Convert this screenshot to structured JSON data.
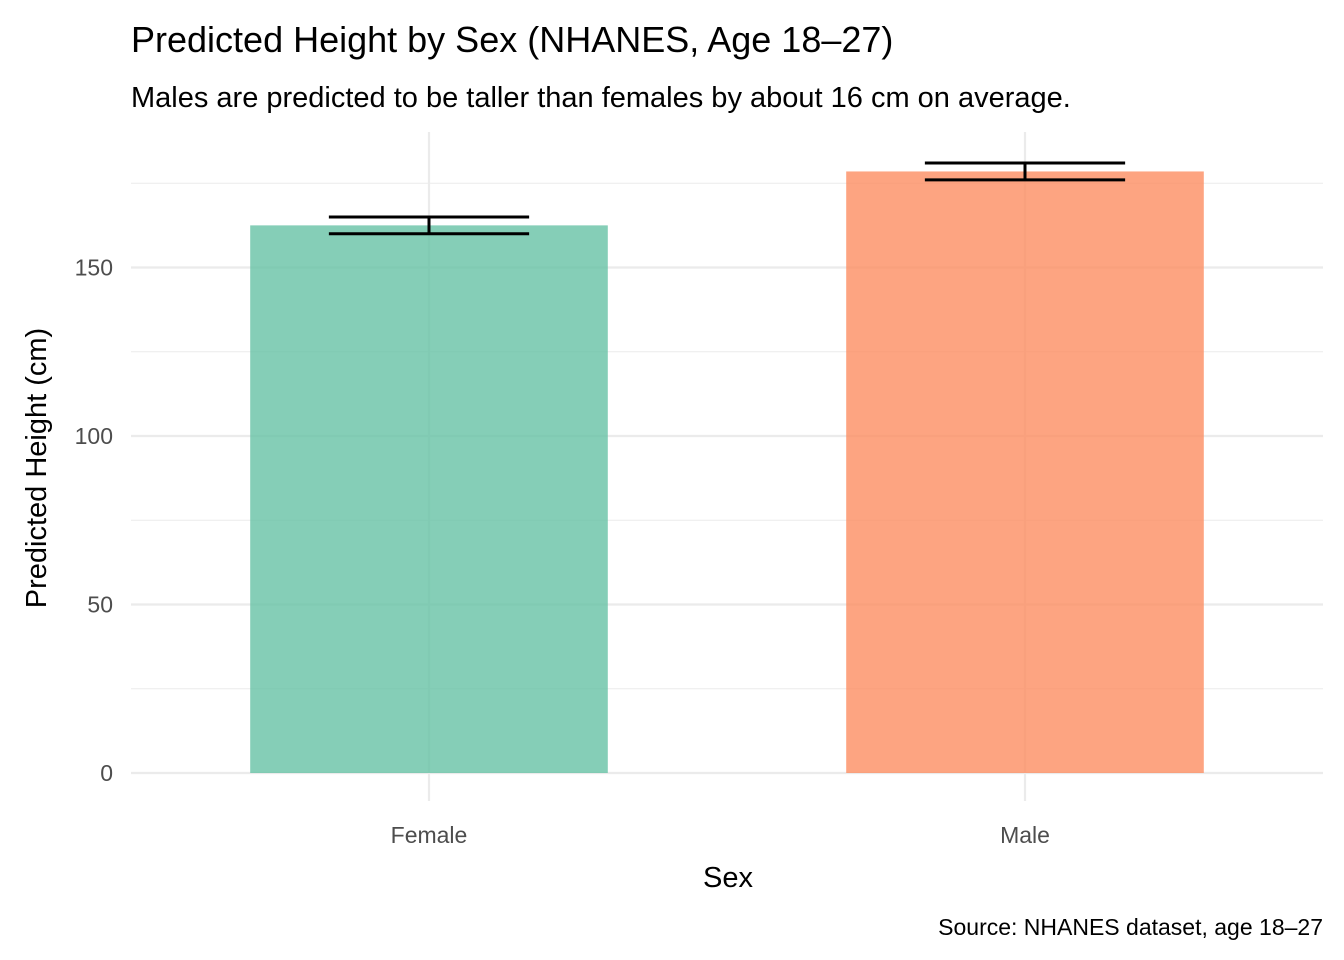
{
  "chart_data": {
    "type": "bar",
    "title": "Predicted Height by Sex (NHANES, Age 18–27)",
    "subtitle": "Males are predicted to be taller than females by about 16 cm on average.",
    "xlabel": "Sex",
    "ylabel": "Predicted Height (cm)",
    "caption": "Source: NHANES dataset, age 18–27",
    "categories": [
      "Female",
      "Male"
    ],
    "values": [
      162.5,
      178.5
    ],
    "error_low": [
      160.0,
      176.0
    ],
    "error_high": [
      165.0,
      181.0
    ],
    "colors": [
      "#66c2a5",
      "#fc8d62"
    ],
    "bar_opacity": 0.8,
    "ylim": [
      0,
      190
    ],
    "yticks": [
      0,
      50,
      100,
      150
    ],
    "grid": true,
    "legend": "none"
  }
}
